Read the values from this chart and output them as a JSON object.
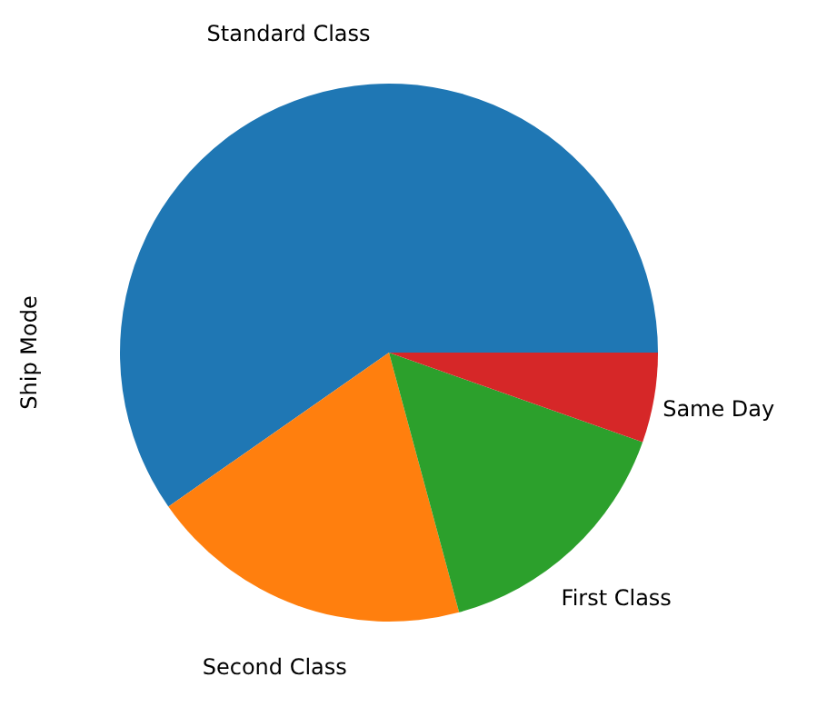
{
  "chart_data": {
    "type": "pie",
    "ylabel": "Ship Mode",
    "categories": [
      "Standard Class",
      "Second Class",
      "First Class",
      "Same Day"
    ],
    "values": [
      59.7,
      19.5,
      15.4,
      5.4
    ],
    "colors": [
      "#1f77b4",
      "#ff7f0e",
      "#2ca02c",
      "#d62728"
    ]
  }
}
